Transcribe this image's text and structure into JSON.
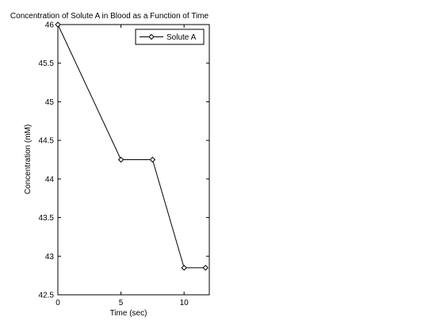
{
  "chart_data": {
    "type": "line",
    "title": "Concentration of Solute A in Blood as a Function of Time",
    "xlabel": "Time (sec)",
    "ylabel": "Concentration (mM)",
    "xlim": [
      0,
      12
    ],
    "ylim": [
      42.5,
      46
    ],
    "x_ticks": [
      0,
      5,
      10
    ],
    "y_ticks": [
      42.5,
      43,
      43.5,
      44,
      44.5,
      45,
      45.5,
      46
    ],
    "grid": false,
    "legend_position": "top-right",
    "marker": "diamond",
    "series": [
      {
        "name": "Solute A",
        "color": "#000000",
        "x": [
          0,
          5,
          7.5,
          10,
          11.7
        ],
        "y": [
          46,
          44.25,
          44.25,
          42.85,
          42.85
        ]
      }
    ]
  }
}
